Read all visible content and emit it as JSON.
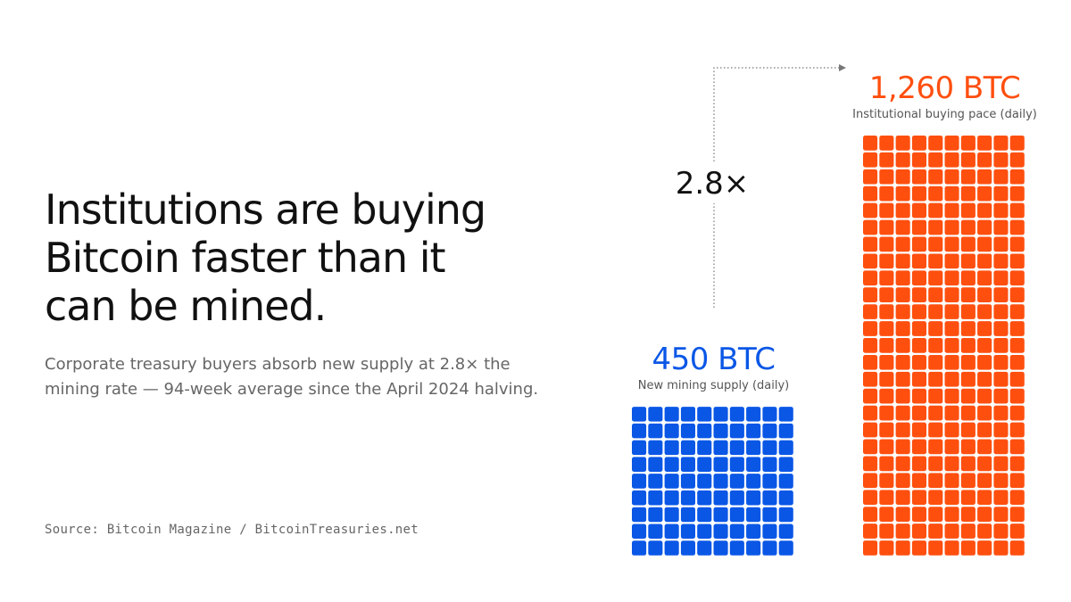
{
  "chart_data": {
    "type": "waffle",
    "title": "Institutions are buying Bitcoin faster than it can be mined.",
    "subtitle": "Corporate treasury buyers absorb new supply at 2.8× the mining rate — 94-week average since the April 2024 halving.",
    "source": "Source: Bitcoin Magazine / BitcoinTreasuries.net",
    "annotation": "2.8×",
    "categories": [
      "New mining supply (daily)",
      "Institutional buying pace (daily)"
    ],
    "values": [
      450,
      1260
    ],
    "value_labels": [
      "450 BTC",
      "1,260 BTC"
    ],
    "colors": [
      "#0a57e6",
      "#ff4f0f"
    ]
  }
}
